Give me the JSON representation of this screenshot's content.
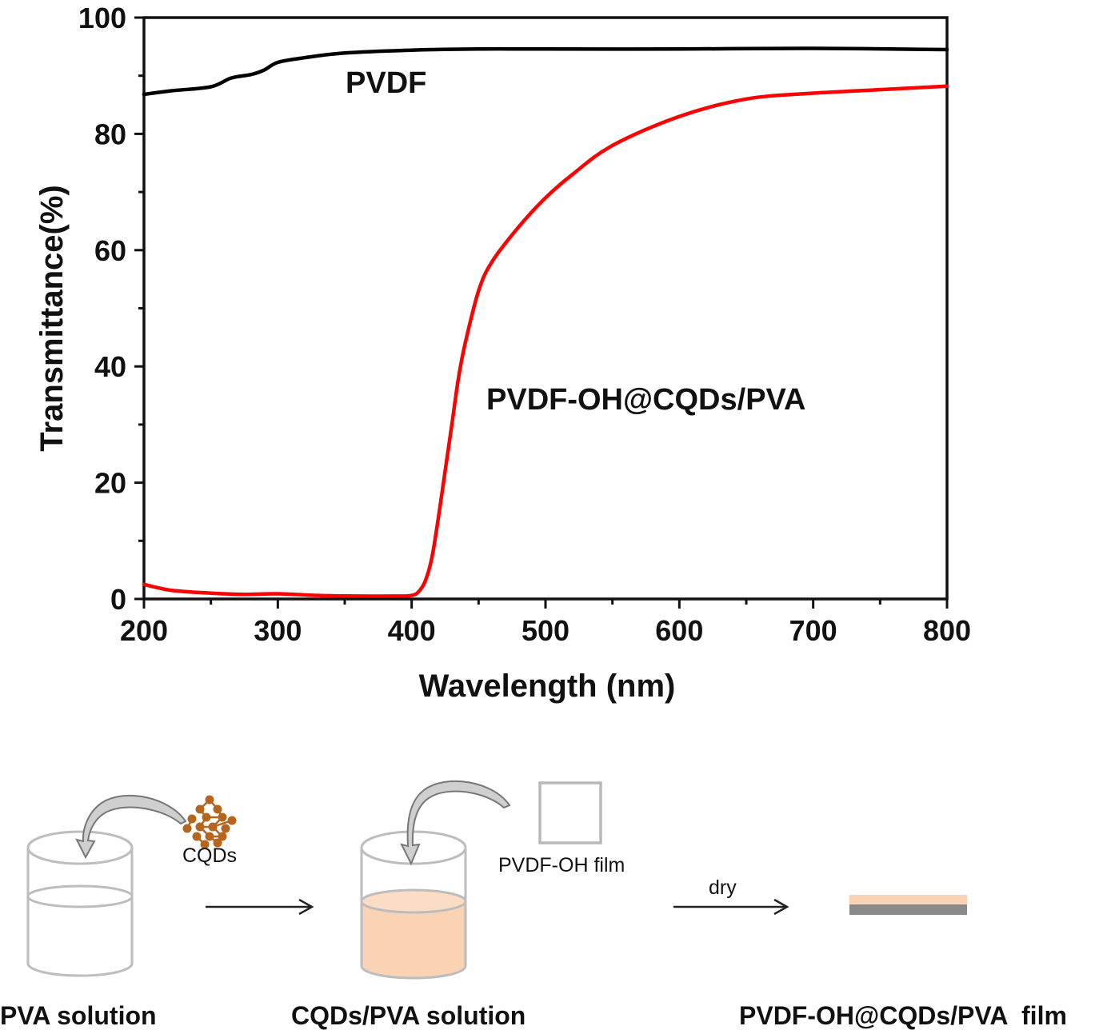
{
  "chart_data": {
    "type": "line",
    "title": "",
    "xlabel": "Wavelength (nm)",
    "ylabel": "Transmittance(%)",
    "xlim": [
      200,
      800
    ],
    "ylim": [
      0,
      100
    ],
    "x_ticks": [
      200,
      300,
      400,
      500,
      600,
      700,
      800
    ],
    "y_ticks": [
      0,
      20,
      40,
      60,
      80,
      100
    ],
    "grid": false,
    "legend": "none (inline labels)",
    "series": [
      {
        "name": "PVDF",
        "color": "#000000",
        "x": [
          200,
          220,
          250,
          265,
          280,
          290,
          300,
          320,
          350,
          400,
          450,
          500,
          600,
          700,
          800
        ],
        "y": [
          86.8,
          87.4,
          88.1,
          89.6,
          90.2,
          91.0,
          92.3,
          93.1,
          93.9,
          94.4,
          94.6,
          94.6,
          94.6,
          94.7,
          94.5
        ]
      },
      {
        "name": "PVDF-OH@CQDs/PVA",
        "color": "#ff0000",
        "x": [
          200,
          220,
          250,
          275,
          300,
          330,
          360,
          390,
          400,
          405,
          410,
          415,
          420,
          425,
          430,
          435,
          440,
          450,
          460,
          480,
          500,
          520,
          550,
          600,
          650,
          700,
          750,
          800
        ],
        "y": [
          2.5,
          1.5,
          1.0,
          0.8,
          0.9,
          0.6,
          0.5,
          0.5,
          0.6,
          1.2,
          3.0,
          7.0,
          14.0,
          22.0,
          30.0,
          38.0,
          44.0,
          53.0,
          58.0,
          64.0,
          69.0,
          73.0,
          78.0,
          83.0,
          86.0,
          87.0,
          87.6,
          88.2
        ]
      }
    ]
  },
  "scheme": {
    "cqds_label": "CQDs",
    "film_label": "PVDF-OH film",
    "dry_label": "dry",
    "captions": [
      "PVA solution",
      "CQDs/PVA solution",
      "PVDF-OH@CQDs/PVA  film"
    ]
  },
  "colors": {
    "solution": "#fad3b5",
    "cqd_dots": "#b5651d",
    "film_gray": "#8a8a8a",
    "beaker_line": "#bbbbbb"
  }
}
